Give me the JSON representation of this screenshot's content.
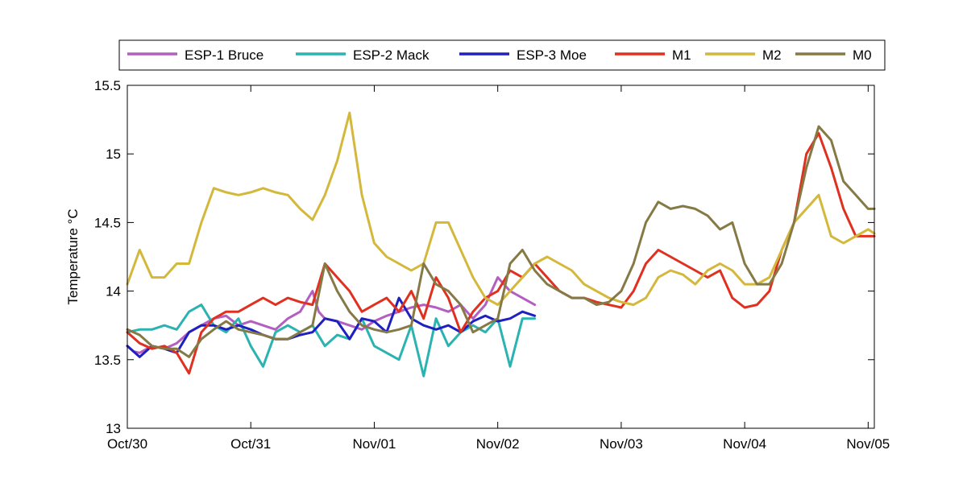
{
  "chart_data": {
    "type": "line",
    "title": "",
    "xlabel": "",
    "ylabel": "Temperature °C",
    "ylim": [
      13,
      15.5
    ],
    "y_ticks": [
      "13",
      "13.5",
      "14",
      "14.5",
      "15",
      "15.5"
    ],
    "x_ticks": [
      "Oct/30",
      "Oct/31",
      "Nov/01",
      "Nov/02",
      "Nov/03",
      "Nov/04",
      "Nov/05"
    ],
    "xlim": [
      "Oct/30",
      "Nov/05"
    ],
    "x_unit": "days",
    "grid": false,
    "legend_position": "top",
    "series": [
      {
        "name": "ESP-1 Bruce",
        "color": "#b35fc1",
        "x": [
          0,
          0.05,
          0.1,
          0.2,
          0.3,
          0.4,
          0.5,
          0.6,
          0.7,
          0.8,
          0.9,
          1.0,
          1.1,
          1.2,
          1.3,
          1.4,
          1.5,
          1.55,
          1.6,
          1.7,
          1.8,
          1.9,
          2.0,
          2.1,
          2.2,
          2.3,
          2.4,
          2.5,
          2.6,
          2.7,
          2.8,
          2.9,
          3.0,
          3.1,
          3.2,
          3.3
        ],
        "y": [
          13.6,
          13.56,
          13.55,
          13.6,
          13.58,
          13.62,
          13.7,
          13.75,
          13.8,
          13.82,
          13.75,
          13.78,
          13.75,
          13.72,
          13.8,
          13.85,
          14.0,
          13.85,
          13.8,
          13.78,
          13.75,
          13.72,
          13.78,
          13.82,
          13.85,
          13.88,
          13.9,
          13.88,
          13.85,
          13.9,
          13.8,
          13.9,
          14.1,
          14.0,
          13.95,
          13.9
        ]
      },
      {
        "name": "ESP-2 Mack",
        "color": "#2ab3b0",
        "x": [
          0,
          0.1,
          0.2,
          0.3,
          0.4,
          0.5,
          0.6,
          0.7,
          0.8,
          0.9,
          1.0,
          1.1,
          1.2,
          1.3,
          1.4,
          1.5,
          1.6,
          1.7,
          1.8,
          1.9,
          2.0,
          2.1,
          2.2,
          2.3,
          2.4,
          2.5,
          2.6,
          2.7,
          2.8,
          2.9,
          3.0,
          3.1,
          3.2,
          3.3
        ],
        "y": [
          13.7,
          13.72,
          13.72,
          13.75,
          13.72,
          13.85,
          13.9,
          13.75,
          13.7,
          13.8,
          13.6,
          13.45,
          13.7,
          13.75,
          13.7,
          13.75,
          13.6,
          13.68,
          13.65,
          13.8,
          13.6,
          13.55,
          13.5,
          13.75,
          13.38,
          13.8,
          13.6,
          13.7,
          13.75,
          13.7,
          13.8,
          13.45,
          13.8,
          13.8
        ]
      },
      {
        "name": "ESP-3 Moe",
        "color": "#2020c0",
        "x": [
          0,
          0.1,
          0.2,
          0.3,
          0.4,
          0.5,
          0.6,
          0.7,
          0.8,
          0.9,
          1.0,
          1.1,
          1.2,
          1.3,
          1.4,
          1.5,
          1.6,
          1.7,
          1.8,
          1.9,
          2.0,
          2.1,
          2.2,
          2.3,
          2.4,
          2.5,
          2.6,
          2.7,
          2.8,
          2.9,
          3.0,
          3.1,
          3.2,
          3.3
        ],
        "y": [
          13.6,
          13.52,
          13.6,
          13.58,
          13.55,
          13.7,
          13.75,
          13.75,
          13.72,
          13.75,
          13.72,
          13.68,
          13.65,
          13.65,
          13.68,
          13.7,
          13.8,
          13.78,
          13.65,
          13.8,
          13.78,
          13.7,
          13.95,
          13.8,
          13.75,
          13.72,
          13.75,
          13.7,
          13.78,
          13.82,
          13.78,
          13.8,
          13.85,
          13.82
        ]
      },
      {
        "name": "M1",
        "color": "#e03020",
        "x": [
          0,
          0.1,
          0.2,
          0.3,
          0.4,
          0.5,
          0.6,
          0.7,
          0.8,
          0.9,
          1.0,
          1.1,
          1.2,
          1.3,
          1.4,
          1.5,
          1.6,
          1.7,
          1.8,
          1.9,
          2.0,
          2.1,
          2.2,
          2.3,
          2.4,
          2.5,
          2.6,
          2.7,
          2.8,
          2.9,
          3.0,
          3.1,
          3.2,
          3.3,
          3.4,
          3.5,
          3.6,
          3.7,
          3.8,
          3.9,
          4.0,
          4.1,
          4.2,
          4.3,
          4.4,
          4.5,
          4.6,
          4.7,
          4.8,
          4.9,
          5.0,
          5.1,
          5.2,
          5.3,
          5.4,
          5.5,
          5.6,
          5.7,
          5.8,
          5.9,
          6.0,
          6.05
        ],
        "y": [
          13.7,
          13.62,
          13.58,
          13.6,
          13.55,
          13.4,
          13.7,
          13.8,
          13.85,
          13.85,
          13.9,
          13.95,
          13.9,
          13.95,
          13.92,
          13.9,
          14.2,
          14.1,
          14.0,
          13.85,
          13.9,
          13.95,
          13.85,
          14.0,
          13.8,
          14.1,
          13.95,
          13.7,
          13.85,
          13.95,
          14.0,
          14.15,
          14.1,
          14.2,
          14.1,
          14.0,
          13.95,
          13.95,
          13.92,
          13.9,
          13.88,
          14.0,
          14.2,
          14.3,
          14.25,
          14.2,
          14.15,
          14.1,
          14.15,
          13.95,
          13.88,
          13.9,
          14.0,
          14.3,
          14.5,
          15.0,
          15.15,
          14.9,
          14.6,
          14.4,
          14.4,
          14.4
        ]
      },
      {
        "name": "M2",
        "color": "#d4b83c",
        "x": [
          0,
          0.1,
          0.2,
          0.3,
          0.4,
          0.5,
          0.6,
          0.7,
          0.8,
          0.9,
          1.0,
          1.1,
          1.2,
          1.3,
          1.4,
          1.5,
          1.6,
          1.7,
          1.8,
          1.9,
          2.0,
          2.1,
          2.2,
          2.3,
          2.4,
          2.5,
          2.6,
          2.7,
          2.8,
          2.9,
          3.0,
          3.1,
          3.2,
          3.3,
          3.4,
          3.5,
          3.6,
          3.7,
          3.8,
          3.9,
          4.0,
          4.1,
          4.2,
          4.3,
          4.4,
          4.5,
          4.6,
          4.7,
          4.8,
          4.9,
          5.0,
          5.1,
          5.2,
          5.3,
          5.4,
          5.5,
          5.6,
          5.7,
          5.8,
          5.9,
          6.0,
          6.05
        ],
        "y": [
          14.05,
          14.3,
          14.1,
          14.1,
          14.2,
          14.2,
          14.5,
          14.75,
          14.72,
          14.7,
          14.72,
          14.75,
          14.72,
          14.7,
          14.6,
          14.52,
          14.7,
          14.95,
          15.3,
          14.7,
          14.35,
          14.25,
          14.2,
          14.15,
          14.2,
          14.5,
          14.5,
          14.3,
          14.1,
          13.95,
          13.9,
          14.0,
          14.1,
          14.2,
          14.25,
          14.2,
          14.15,
          14.05,
          14.0,
          13.95,
          13.92,
          13.9,
          13.95,
          14.1,
          14.15,
          14.12,
          14.05,
          14.15,
          14.2,
          14.15,
          14.05,
          14.05,
          14.1,
          14.3,
          14.5,
          14.6,
          14.7,
          14.4,
          14.35,
          14.4,
          14.45,
          14.42
        ]
      },
      {
        "name": "M0",
        "color": "#857a45",
        "x": [
          0,
          0.1,
          0.2,
          0.3,
          0.4,
          0.5,
          0.6,
          0.7,
          0.8,
          0.9,
          1.0,
          1.1,
          1.2,
          1.3,
          1.4,
          1.5,
          1.6,
          1.7,
          1.8,
          1.9,
          2.0,
          2.1,
          2.2,
          2.3,
          2.4,
          2.5,
          2.6,
          2.7,
          2.8,
          2.9,
          3.0,
          3.1,
          3.2,
          3.3,
          3.4,
          3.5,
          3.6,
          3.7,
          3.8,
          3.9,
          4.0,
          4.1,
          4.2,
          4.3,
          4.4,
          4.5,
          4.6,
          4.7,
          4.8,
          4.9,
          5.0,
          5.1,
          5.2,
          5.3,
          5.4,
          5.5,
          5.6,
          5.7,
          5.8,
          5.9,
          6.0,
          6.05
        ],
        "y": [
          13.72,
          13.68,
          13.6,
          13.58,
          13.58,
          13.52,
          13.65,
          13.72,
          13.78,
          13.72,
          13.7,
          13.68,
          13.65,
          13.65,
          13.7,
          13.75,
          14.2,
          14.0,
          13.85,
          13.75,
          13.72,
          13.7,
          13.72,
          13.75,
          14.2,
          14.05,
          14.0,
          13.9,
          13.7,
          13.75,
          13.8,
          14.2,
          14.3,
          14.15,
          14.05,
          14.0,
          13.95,
          13.95,
          13.9,
          13.92,
          14.0,
          14.2,
          14.5,
          14.65,
          14.6,
          14.62,
          14.6,
          14.55,
          14.45,
          14.5,
          14.2,
          14.05,
          14.05,
          14.2,
          14.5,
          14.9,
          15.2,
          15.1,
          14.8,
          14.7,
          14.6,
          14.6
        ]
      }
    ]
  }
}
